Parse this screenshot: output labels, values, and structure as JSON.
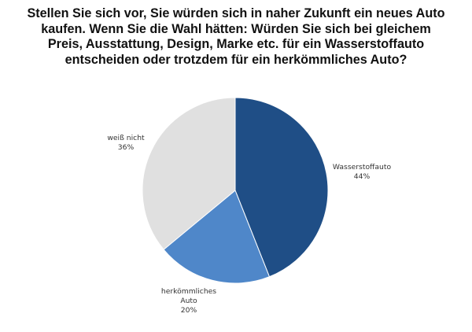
{
  "chart_data": {
    "type": "pie",
    "title": "Stellen Sie sich vor, Sie würden sich in naher Zukunft ein neues Auto\nkaufen. Wenn Sie die Wahl hätten: Würden Sie sich bei gleichem\nPreis, Ausstattung, Design, Marke etc. für ein Wasserstoffauto\nentscheiden oder trotzdem für ein herkömmliches Auto?",
    "categories": [
      "Wasserstoffauto",
      "herkömmliches Auto",
      "weiß nicht"
    ],
    "values": [
      44,
      20,
      36
    ],
    "unit": "%",
    "colors": [
      "#1F4E86",
      "#4F87C9",
      "#E0E0E0"
    ],
    "start_angle_deg": 0,
    "direction": "clockwise",
    "legend": "none (data labels outside slices)",
    "labels": [
      {
        "name": "Wasserstoffauto",
        "value_text": "44%"
      },
      {
        "name_line1": "herkömmliches",
        "name_line2": "Auto",
        "value_text": "20%"
      },
      {
        "name": "weiß nicht",
        "value_text": "36%"
      }
    ]
  },
  "title_lines": "Stellen Sie sich vor, Sie würden sich in naher Zukunft ein neues Auto\nkaufen. Wenn Sie die Wahl hätten: Würden Sie sich bei gleichem\nPreis, Ausstattung, Design, Marke etc. für ein Wasserstoffauto\nentscheiden oder trotzdem für ein herkömmliches Auto?"
}
